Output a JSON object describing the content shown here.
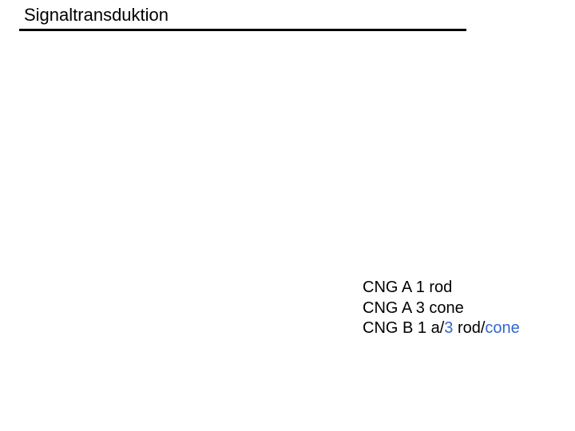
{
  "colors": {
    "text": "#000000",
    "accent": "#3366cc",
    "background": "#ffffff",
    "rule": "#000000"
  },
  "title": "Signaltransduktion",
  "lines": {
    "l1": {
      "prefix": "CNG A 1 rod"
    },
    "l2": {
      "prefix": "CNG A 3 cone"
    },
    "l3": {
      "p1": "CNG B 1 a/",
      "p2": "3",
      "p3": " rod/",
      "p4": "cone"
    }
  },
  "accent_style": "color:#3366cc"
}
